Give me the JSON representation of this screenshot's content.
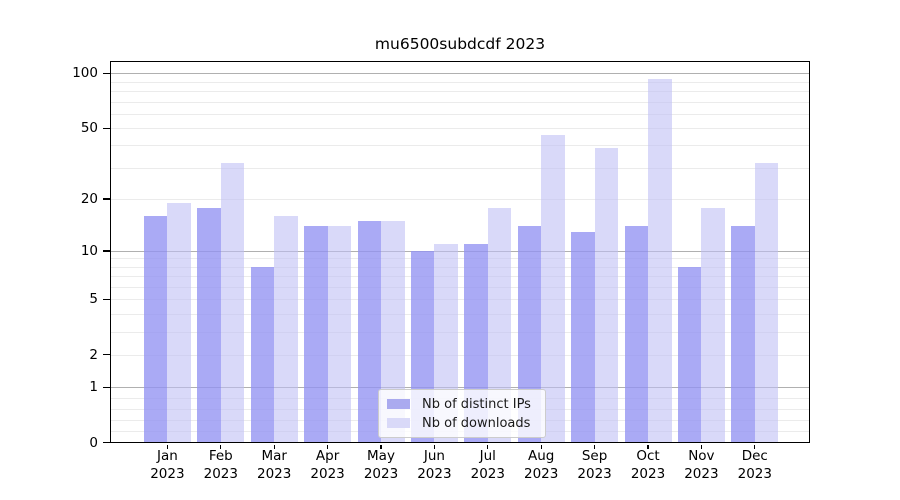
{
  "title": "mu6500subdcdf 2023",
  "chart_data": {
    "type": "bar",
    "title": "mu6500subdcdf 2023",
    "categories": [
      "Jan",
      "Feb",
      "Mar",
      "Apr",
      "May",
      "Jun",
      "Jul",
      "Aug",
      "Sep",
      "Oct",
      "Nov",
      "Dec"
    ],
    "x_tick_year": "2023",
    "series": [
      {
        "name": "Nb of distinct IPs",
        "color": "#aaaaef",
        "fill": "rgba(146,146,242,0.78)",
        "values": [
          16,
          18,
          8,
          14,
          15,
          10,
          11,
          14,
          13,
          14,
          8,
          14
        ]
      },
      {
        "name": "Nb of downloads",
        "color": "#d9d9f8",
        "fill": "rgba(190,190,244,0.58)",
        "values": [
          19,
          32,
          16,
          14,
          15,
          11,
          18,
          46,
          39,
          94,
          18,
          32
        ]
      }
    ],
    "yscale": "log1p",
    "ylim": [
      0,
      117
    ],
    "y_ticks": [
      100,
      50,
      20,
      10,
      5,
      2,
      1,
      0
    ],
    "grid": {
      "major": [
        1,
        10,
        100
      ],
      "minor_log": [
        2,
        3,
        4,
        5,
        6,
        7,
        8,
        9,
        20,
        30,
        40,
        50,
        60,
        70,
        80,
        90
      ],
      "minor_linear": [
        0.2,
        0.4,
        0.6,
        0.8
      ]
    },
    "legend": {
      "position": "lower-center"
    }
  }
}
